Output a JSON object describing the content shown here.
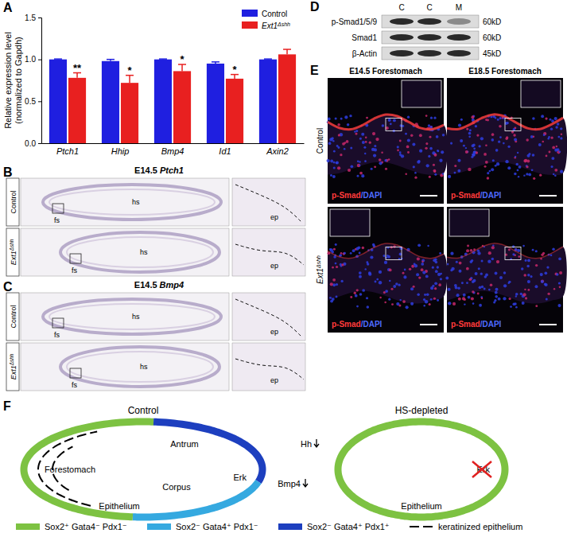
{
  "panel_labels": [
    "A",
    "B",
    "C",
    "D",
    "E",
    "F"
  ],
  "chart_data": {
    "type": "bar",
    "y_label": [
      "Relative expression level",
      "(normalized to Gapdh)"
    ],
    "categories": [
      "Ptch1",
      "Hhip",
      "Bmp4",
      "Id1",
      "Axin2"
    ],
    "series": [
      {
        "name": "Control",
        "color": "#1f1fe0",
        "values": [
          1.0,
          0.98,
          1.0,
          0.95,
          1.0
        ],
        "errors": [
          0.005,
          0.02,
          0.005,
          0.02,
          0.005
        ]
      },
      {
        "name": "Ext1Δshh",
        "color": "#e82020",
        "values": [
          0.78,
          0.72,
          0.86,
          0.77,
          1.06
        ],
        "errors": [
          0.06,
          0.09,
          0.08,
          0.05,
          0.06
        ]
      }
    ],
    "significance": [
      "**",
      "*",
      "*",
      "*",
      null
    ],
    "ylim": [
      0,
      1.5
    ],
    "yticks": [
      {
        "value": 0,
        "label": "0.0"
      },
      {
        "value": 0.5,
        "label": "0.5"
      },
      {
        "value": 1,
        "label": "1.0"
      },
      {
        "value": 1.5,
        "label": "1.5"
      }
    ],
    "legend": "top-right"
  },
  "panel_B": {
    "title": "E14.5 Ptch1",
    "rows": [
      "Control",
      "Ext1Δshh"
    ],
    "labels": [
      "fs",
      "hs",
      "ep"
    ]
  },
  "panel_C": {
    "title": "E14.5 Bmp4",
    "rows": [
      "Control",
      "Ext1Δshh"
    ],
    "labels": [
      "fs",
      "hs",
      "ep"
    ]
  },
  "panel_D": {
    "lanes": [
      "C",
      "C",
      "M"
    ],
    "rows": [
      {
        "name": "p-Smad1/5/9",
        "size": "60kD"
      },
      {
        "name": "Smad1",
        "size": "60kD"
      },
      {
        "name": "β-Actin",
        "size": "45kD"
      }
    ]
  },
  "panel_E": {
    "columns": [
      "E14.5 Forestomach",
      "E18.5 Forestomach"
    ],
    "rows": [
      "Control",
      "Ext1Δshh"
    ],
    "stain": "p-Smad/DAPI"
  },
  "panel_F": {
    "titles": [
      "Control",
      "HS-depleted"
    ],
    "control_labels": [
      "Antrum",
      "Corpus",
      "Forestomach",
      "Epithelium",
      "Erk"
    ],
    "hs_labels": [
      "Hh",
      "Bmp4",
      "Epithelium",
      "Erk"
    ],
    "legend": [
      {
        "label": "Sox2⁺ Gata4⁻ Pdx1⁻",
        "color": "#7dc242"
      },
      {
        "label": "Sox2⁻ Gata4⁺ Pdx1⁻",
        "color": "#35a9e0"
      },
      {
        "label": "Sox2⁻ Gata4⁺ Pdx1⁺",
        "color": "#1d3fbf"
      },
      {
        "label": "keratinized epithelium",
        "color": "#000000"
      }
    ]
  }
}
